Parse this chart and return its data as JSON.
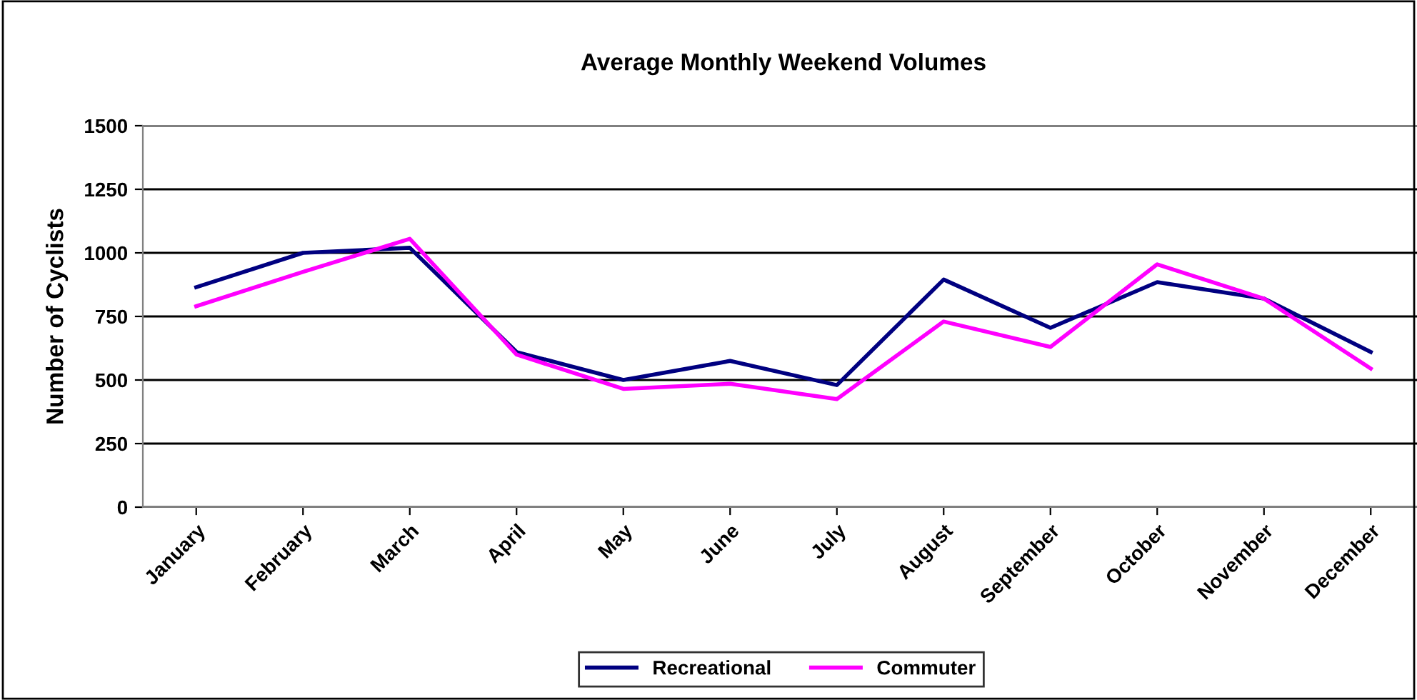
{
  "chart_data": {
    "type": "line",
    "title": "Average Monthly Weekend Volumes",
    "ylabel": "Number of Cyclists",
    "categories": [
      "January",
      "February",
      "March",
      "April",
      "May",
      "June",
      "July",
      "August",
      "September",
      "October",
      "November",
      "December"
    ],
    "series": [
      {
        "name": "Recreational",
        "color": "#000080",
        "values": [
          865,
          1000,
          1020,
          610,
          500,
          575,
          480,
          895,
          705,
          885,
          820,
          610
        ]
      },
      {
        "name": "Commuter",
        "color": "#ff00ff",
        "values": [
          790,
          925,
          1055,
          600,
          465,
          485,
          425,
          730,
          630,
          955,
          820,
          545
        ]
      }
    ],
    "ylim": [
      0,
      1500
    ],
    "yticks": [
      0,
      250,
      500,
      750,
      1000,
      1250,
      1500
    ],
    "grid": "y",
    "legend": "bottom",
    "marker": "none",
    "line_style": "solid"
  }
}
